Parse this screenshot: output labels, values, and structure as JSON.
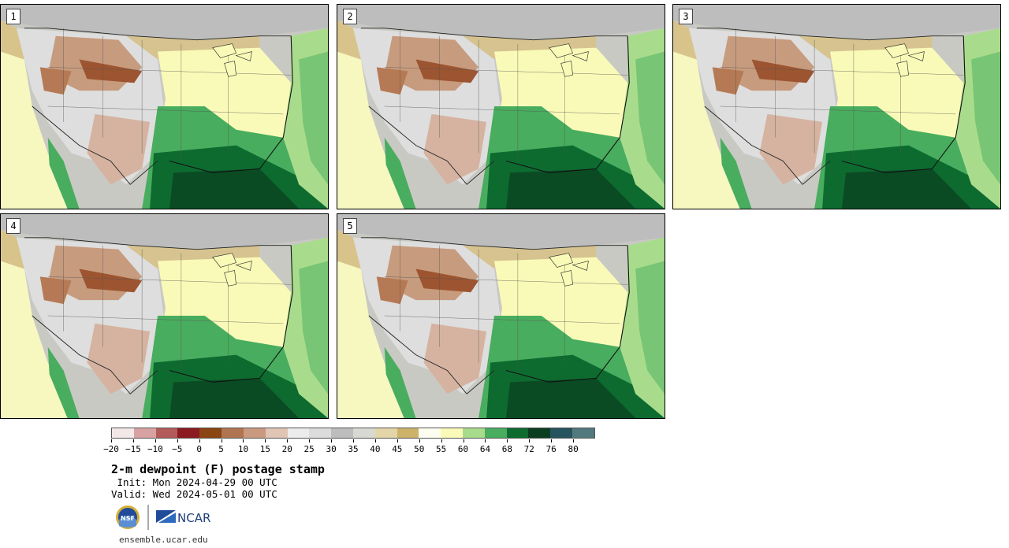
{
  "panels": [
    {
      "label": "1"
    },
    {
      "label": "2"
    },
    {
      "label": "3"
    },
    {
      "label": "4"
    },
    {
      "label": "5"
    }
  ],
  "colorbar": {
    "colors": [
      "#f3e8e8",
      "#d8a2a2",
      "#b35a5a",
      "#8c1a22",
      "#8a4513",
      "#b07550",
      "#c99a80",
      "#e0c4b4",
      "#ececec",
      "#dcdcdc",
      "#bdbdbd",
      "#d9d9d3",
      "#e4d5a8",
      "#cdb26a",
      "#fefef0",
      "#fafab8",
      "#a8dc8c",
      "#48ad5e",
      "#0d6b30",
      "#0b3d20",
      "#25545f",
      "#527a7e"
    ],
    "tick_labels": [
      "−20",
      "−15",
      "−10",
      "−5",
      "0",
      "5",
      "10",
      "15",
      "20",
      "25",
      "30",
      "35",
      "40",
      "45",
      "50",
      "55",
      "60",
      "64",
      "68",
      "72",
      "76",
      "80"
    ]
  },
  "title": "2-m dewpoint (F) postage stamp",
  "init_line": " Init: Mon 2024-04-29 00 UTC",
  "valid_line": "Valid: Wed 2024-05-01 00 UTC",
  "logos": {
    "nsf_text": "NSF",
    "ncar_text": "NCAR"
  },
  "url": "ensemble.ucar.edu"
}
